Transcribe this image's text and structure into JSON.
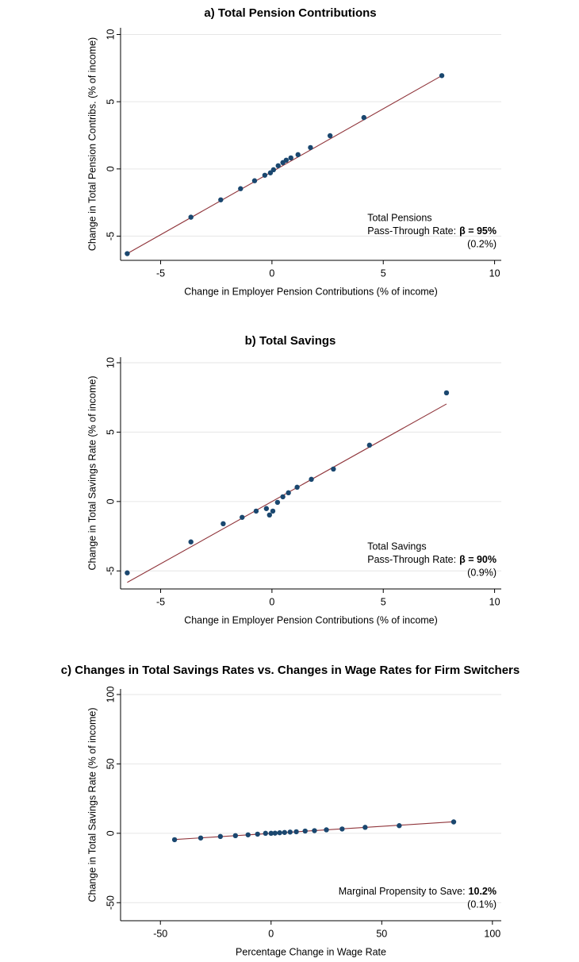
{
  "chart_data": [
    {
      "type": "scatter",
      "title": "a) Total Pension Contributions",
      "x_label": "Change in Employer Pension Contributions (% of income)",
      "y_label": "Change in Total Pension Contribs. (% of income)",
      "x": [
        -6.5,
        -3.64,
        -2.3,
        -1.41,
        -0.78,
        -0.32,
        -0.07,
        0.07,
        0.28,
        0.49,
        0.64,
        0.85,
        1.17,
        1.73,
        2.61,
        4.13,
        7.63
      ],
      "y": [
        -6.3,
        -3.59,
        -2.3,
        -1.47,
        -0.88,
        -0.47,
        -0.29,
        -0.06,
        0.24,
        0.47,
        0.65,
        0.82,
        1.06,
        1.59,
        2.47,
        3.82,
        6.94
      ],
      "fit": {
        "x": [
          -6.5,
          7.63
        ],
        "y": [
          -6.3,
          6.94
        ]
      },
      "color": "#1a476f",
      "fit_color": "#90353b",
      "xlim": [
        -6.8,
        10.3
      ],
      "ylim": [
        -6.8,
        10.5
      ],
      "xticks": [
        -5,
        0,
        5,
        10
      ],
      "yticks": [
        -5,
        0,
        5,
        10
      ],
      "grid": true,
      "annotation": {
        "heading": "Total Pensions",
        "rate_label": "Pass-Through Rate:",
        "rate": "β = 95%",
        "se": "(0.2%)"
      }
    },
    {
      "type": "scatter",
      "title": "b) Total Savings",
      "x_label": "Change in Employer Pension Contributions (% of income)",
      "y_label": "Change in Total Savings Rate (% of income)",
      "x": [
        -6.5,
        -3.64,
        -2.19,
        -1.34,
        -0.71,
        -0.25,
        -0.11,
        0.04,
        0.25,
        0.49,
        0.74,
        1.13,
        1.77,
        2.76,
        4.38,
        7.84
      ],
      "y": [
        -5.14,
        -2.91,
        -1.6,
        -1.14,
        -0.69,
        -0.51,
        -0.97,
        -0.69,
        -0.06,
        0.34,
        0.63,
        1.03,
        1.6,
        2.34,
        4.06,
        7.83
      ],
      "fit": {
        "x": [
          -6.5,
          7.84
        ],
        "y": [
          -5.83,
          7.03
        ]
      },
      "color": "#1a476f",
      "fit_color": "#90353b",
      "xlim": [
        -6.8,
        10.3
      ],
      "ylim": [
        -6.3,
        10.4
      ],
      "xticks": [
        -5,
        0,
        5,
        10
      ],
      "yticks": [
        -5,
        0,
        5,
        10
      ],
      "grid": true,
      "annotation": {
        "heading": "Total Savings",
        "rate_label": "Pass-Through Rate:",
        "rate": "β = 90%",
        "se": "(0.9%)"
      }
    },
    {
      "type": "scatter",
      "title": "c) Changes in Total Savings Rates vs. Changes in Wage Rates for Firm Switchers",
      "x_label": "Percentage Change in Wage Rate",
      "y_label": "Change in Total Savings Rate (% of income)",
      "x": [
        -43.6,
        -31.8,
        -22.9,
        -16.1,
        -10.4,
        -6.1,
        -2.5,
        0,
        1.8,
        3.9,
        6.1,
        8.6,
        11.4,
        15.4,
        19.6,
        25,
        32.1,
        42.5,
        57.9,
        82.5
      ],
      "y": [
        -4.6,
        -3.4,
        -2.3,
        -1.7,
        -1.1,
        -0.6,
        0,
        0,
        0.1,
        0.4,
        0.6,
        0.9,
        1.1,
        1.6,
        1.9,
        2.5,
        3.1,
        4.3,
        5.5,
        8.2
      ],
      "fit": {
        "x": [
          -43.6,
          82.5
        ],
        "y": [
          -4.5,
          8.3
        ]
      },
      "color": "#1a476f",
      "fit_color": "#90353b",
      "xlim": [
        -68,
        104
      ],
      "ylim": [
        -63,
        104
      ],
      "xticks": [
        -50,
        0,
        50,
        100
      ],
      "yticks": [
        -50,
        0,
        50,
        100
      ],
      "grid": true,
      "annotation": {
        "rate_label": "Marginal Propensity to Save:",
        "rate": "10.2%",
        "se": "(0.1%)"
      }
    }
  ]
}
